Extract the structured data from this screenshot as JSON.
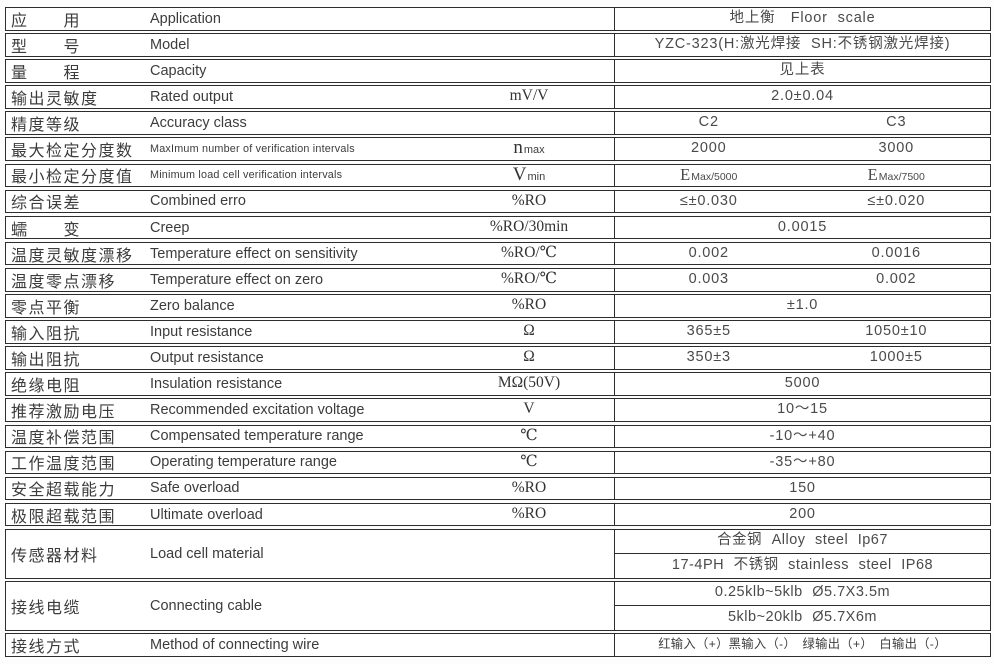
{
  "colors": {
    "border": "#2d2d2d",
    "text": "#3c3c3c",
    "background": "#ffffff"
  },
  "table": {
    "rows": [
      {
        "zh": "应　　用",
        "en": "Application",
        "unit": "",
        "value": "地上衡　Floor scale"
      },
      {
        "zh": "型　　号",
        "en": "Model",
        "unit": "",
        "value": "YZC-323(H:激光焊接 SH:不锈钢激光焊接)"
      },
      {
        "zh": "量　　程",
        "en": "Capacity",
        "unit": "",
        "value": "见上表"
      },
      {
        "zh": "输出灵敏度",
        "en": "Rated output",
        "unit": "mV/V",
        "value": "2.0±0.04"
      },
      {
        "zh": "精度等级",
        "en": "Accuracy class",
        "unit": "",
        "c2": "C2",
        "c3": "C3"
      },
      {
        "zh": "最大检定分度数",
        "en": "MaxImum number of verification intervals",
        "unit_main": "n",
        "unit_sub": "max",
        "c2": "2000",
        "c3": "3000"
      },
      {
        "zh": "最小检定分度值",
        "en": "Minimum load cell verification intervals",
        "unit_main": "V",
        "unit_sub": "min",
        "c2_main": "E",
        "c2_sub": "Max/5000",
        "c3_main": "E",
        "c3_sub": "Max/7500"
      },
      {
        "zh": "综合误差",
        "en": "Combined erro",
        "unit": "%RO",
        "c2": "≤±0.030",
        "c3": "≤±0.020"
      },
      {
        "zh": "蠕　　变",
        "en": "Creep",
        "unit": "%RO/30min",
        "value": "0.0015"
      },
      {
        "zh": "温度灵敏度漂移",
        "en": "Temperature effect on sensitivity",
        "unit": "%RO/℃",
        "c2": "0.002",
        "c3": "0.0016"
      },
      {
        "zh": "温度零点漂移",
        "en": "Temperature effect on zero",
        "unit": "%RO/℃",
        "c2": "0.003",
        "c3": "0.002"
      },
      {
        "zh": "零点平衡",
        "en": "Zero balance",
        "unit": "%RO",
        "value": "±1.0"
      },
      {
        "zh": "输入阻抗",
        "en": "Input resistance",
        "unit": "Ω",
        "c2": "365±5",
        "c3": "1050±10"
      },
      {
        "zh": "输出阻抗",
        "en": "Output resistance",
        "unit": "Ω",
        "c2": "350±3",
        "c3": "1000±5"
      },
      {
        "zh": "绝缘电阻",
        "en": "Insulation resistance",
        "unit": "MΩ(50V)",
        "value": "5000"
      },
      {
        "zh": "推荐激励电压",
        "en": "Recommended excitation voltage",
        "unit": "V",
        "value": "10～15"
      },
      {
        "zh": "温度补偿范围",
        "en": "Compensated temperature range",
        "unit": "℃",
        "value": "-10～+40"
      },
      {
        "zh": "工作温度范围",
        "en": "Operating temperature range",
        "unit": "℃",
        "value": "-35～+80"
      },
      {
        "zh": "安全超载能力",
        "en": "Safe overload",
        "unit": "%RO",
        "value": "150"
      },
      {
        "zh": "极限超载范围",
        "en": "Ultimate overload",
        "unit": "%RO",
        "value": "200"
      },
      {
        "zh": "传感器材料",
        "en": "Load cell material",
        "unit": "",
        "value_top": "合金钢 Alloy steel Ip67",
        "value_bottom": "17-4PH 不锈钢 stainless steel IP68"
      },
      {
        "zh": "接线电缆",
        "en": "Connecting cable",
        "unit": "",
        "value_top": "0.25klb~5klb Ø5.7X3.5m",
        "value_bottom": "5klb~20klb Ø5.7X6m"
      },
      {
        "zh": "接线方式",
        "en": "Method of connecting wire",
        "unit": "",
        "value": "红输入（+）黑输入（-）　绿输出（+）　白输出（-）"
      }
    ]
  }
}
